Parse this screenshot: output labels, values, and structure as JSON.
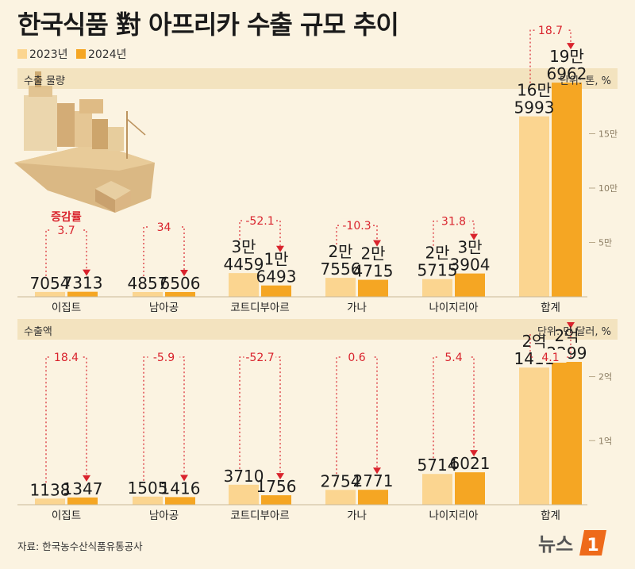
{
  "title": "한국식품 對 아프리카 수출 규모 추이",
  "legend": [
    {
      "label": "2023년",
      "color": "#fbd590"
    },
    {
      "label": "2024년",
      "color": "#f5a623"
    }
  ],
  "source": "자료: 한국농수산식품유통공사",
  "logo_text": "뉴스",
  "logo_mark": "1",
  "colors": {
    "y2023": "#fbd590",
    "y2024": "#f5a623",
    "dotted": "#d9232d",
    "band": "#f3e3bf"
  },
  "chart_data": [
    {
      "type": "bar",
      "section_label": "수출 물량",
      "unit_label": "단위: 톤, %",
      "categories": [
        "이집트",
        "남아공",
        "코트디부아르",
        "가나",
        "나이지리아",
        "합계"
      ],
      "series": [
        {
          "name": "2023년",
          "values": [
            7054,
            4857,
            34459,
            27556,
            25715,
            165993
          ],
          "labels": [
            [
              "7054"
            ],
            [
              "4857"
            ],
            [
              "3만",
              "4459"
            ],
            [
              "2만",
              "7556"
            ],
            [
              "2만",
              "5715"
            ],
            [
              "16만",
              "5993"
            ]
          ]
        },
        {
          "name": "2024년",
          "values": [
            7313,
            6506,
            16493,
            24715,
            33904,
            196962
          ],
          "labels": [
            [
              "7313"
            ],
            [
              "6506"
            ],
            [
              "1만",
              "6493"
            ],
            [
              "2만",
              "4715"
            ],
            [
              "3만",
              "3904"
            ],
            [
              "19만",
              "6962"
            ]
          ]
        }
      ],
      "change_pct": [
        "3.7",
        "34",
        "-52.1",
        "-10.3",
        "31.8",
        "18.7"
      ],
      "change_title": "증감률",
      "total_yticks": [
        {
          "value": 50000,
          "label": "5만"
        },
        {
          "value": 100000,
          "label": "10만"
        },
        {
          "value": 150000,
          "label": "15만"
        }
      ],
      "yscale": {
        "small_max": 300000,
        "total_max": 200000
      }
    },
    {
      "type": "bar",
      "section_label": "수출액",
      "unit_label": "단위: 만 달러, %",
      "categories": [
        "이집트",
        "남아공",
        "코트디부아르",
        "가나",
        "나이지리아",
        "합계"
      ],
      "series": [
        {
          "name": "2023년",
          "values": [
            1138,
            1505,
            3710,
            2754,
            5714,
            21411
          ],
          "labels": [
            [
              "1138"
            ],
            [
              "1505"
            ],
            [
              "3710"
            ],
            [
              "2754"
            ],
            [
              "5714"
            ],
            [
              "2억",
              "1411"
            ]
          ]
        },
        {
          "name": "2024년",
          "values": [
            1347,
            1416,
            1756,
            2771,
            6021,
            22299
          ],
          "labels": [
            [
              "1347"
            ],
            [
              "1416"
            ],
            [
              "1756"
            ],
            [
              "2771"
            ],
            [
              "6021"
            ],
            [
              "2억",
              "2299"
            ]
          ]
        }
      ],
      "change_pct": [
        "18.4",
        "-5.9",
        "-52.7",
        "0.6",
        "5.4",
        "4.1"
      ],
      "total_yticks": [
        {
          "value": 10000,
          "label": "1억"
        },
        {
          "value": 20000,
          "label": "2억"
        }
      ],
      "yscale": {
        "small_max": 28000,
        "total_max": 28000
      }
    }
  ]
}
